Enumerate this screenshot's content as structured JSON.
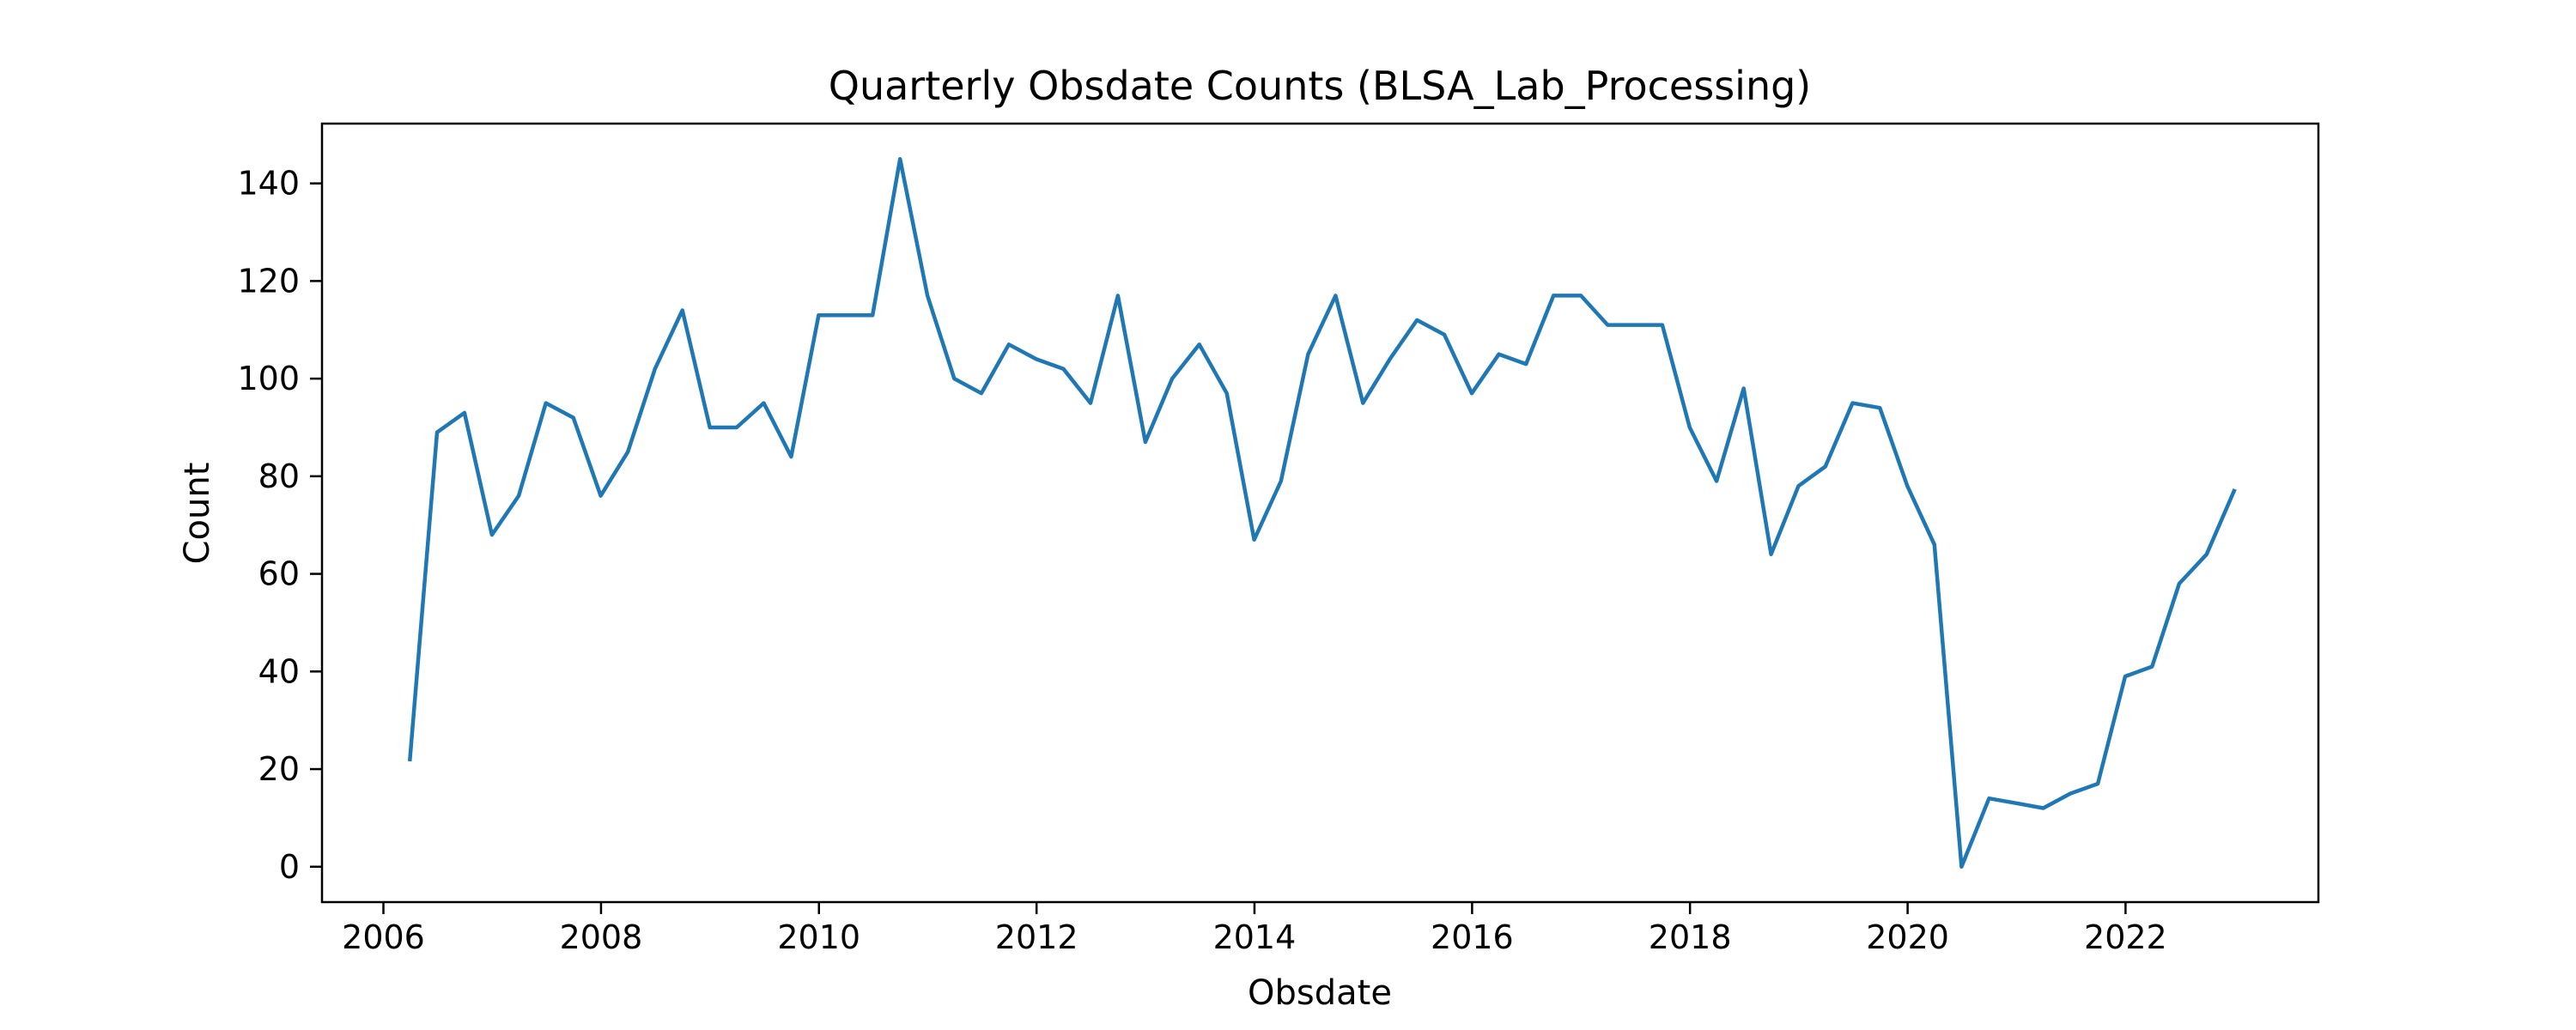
{
  "chart_data": {
    "type": "line",
    "title": "Quarterly Obsdate Counts (BLSA_Lab_Processing)",
    "xlabel": "Obsdate",
    "ylabel": "Count",
    "xlim": [
      "2005-06-09",
      "2023-10-10"
    ],
    "ylim": [
      -7.25,
      152.25
    ],
    "x_ticks": [
      "2006",
      "2008",
      "2010",
      "2012",
      "2014",
      "2016",
      "2018",
      "2020",
      "2022"
    ],
    "y_ticks": [
      "0",
      "20",
      "40",
      "60",
      "80",
      "100",
      "120",
      "140"
    ],
    "grid": false,
    "line_color": "#1f77b4",
    "series": [
      {
        "x": [
          "2006-03-31",
          "2006-06-30",
          "2006-09-30",
          "2006-12-31",
          "2007-03-31",
          "2007-06-30",
          "2007-09-30",
          "2007-12-31",
          "2008-03-31",
          "2008-06-30",
          "2008-09-30",
          "2008-12-31",
          "2009-03-31",
          "2009-06-30",
          "2009-09-30",
          "2009-12-31",
          "2010-03-31",
          "2010-06-30",
          "2010-09-30",
          "2010-12-31",
          "2011-03-31",
          "2011-06-30",
          "2011-09-30",
          "2011-12-31",
          "2012-03-31",
          "2012-06-30",
          "2012-09-30",
          "2012-12-31",
          "2013-03-31",
          "2013-06-30",
          "2013-09-30",
          "2013-12-31",
          "2014-03-31",
          "2014-06-30",
          "2014-09-30",
          "2014-12-31",
          "2015-03-31",
          "2015-06-30",
          "2015-09-30",
          "2015-12-31",
          "2016-03-31",
          "2016-06-30",
          "2016-09-30",
          "2016-12-31",
          "2017-03-31",
          "2017-06-30",
          "2017-09-30",
          "2017-12-31",
          "2018-03-31",
          "2018-06-30",
          "2018-09-30",
          "2018-12-31",
          "2019-03-31",
          "2019-06-30",
          "2019-09-30",
          "2019-12-31",
          "2020-03-31",
          "2020-06-30",
          "2020-09-30",
          "2020-12-31",
          "2021-03-31",
          "2021-06-30",
          "2021-09-30",
          "2021-12-31",
          "2022-03-31",
          "2022-06-30",
          "2022-09-30",
          "2022-12-31"
        ],
        "values": [
          22,
          89,
          93,
          68,
          76,
          95,
          92,
          76,
          85,
          102,
          114,
          90,
          90,
          95,
          84,
          113,
          113,
          113,
          145,
          117,
          100,
          97,
          107,
          104,
          102,
          95,
          117,
          87,
          100,
          107,
          97,
          67,
          79,
          105,
          117,
          95,
          104,
          112,
          109,
          97,
          105,
          103,
          117,
          117,
          111,
          111,
          111,
          90,
          79,
          98,
          64,
          78,
          82,
          95,
          94,
          78,
          66,
          0,
          14,
          13,
          12,
          15,
          17,
          39,
          41,
          58,
          64,
          77
        ]
      }
    ]
  }
}
